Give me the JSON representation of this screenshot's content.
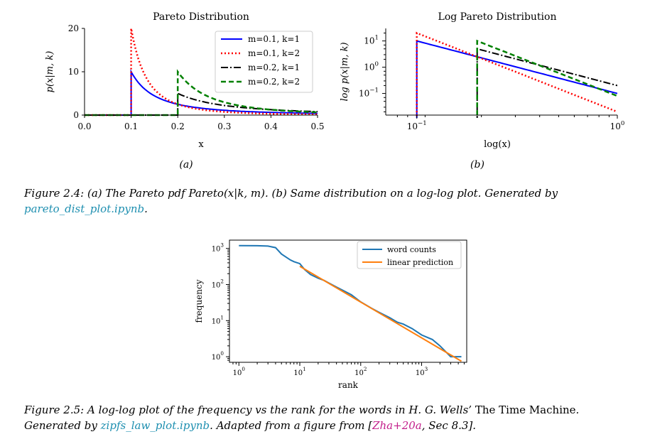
{
  "figure_2_4": {
    "caption_label": "Figure 2.4:",
    "caption_text": "(a) The Pareto pdf Pareto(x|k, m).  (b) Same distribution on a log-log plot.  Generated by",
    "caption_link": "pareto_dist_plot.ipynb",
    "caption_end": "."
  },
  "figure_2_5": {
    "caption_label": "Figure 2.5:",
    "caption_text": "A log-log plot of the frequency vs the rank for the words in H. G. Wells’",
    "caption_title": "The Time Machine",
    "caption_text2": ". Generated by",
    "caption_link": "zipfs_law_plot.ipynb",
    "caption_text3": ". Adapted from a figure from [",
    "caption_cite": "Zha+20a",
    "caption_text4": ", Sec 8.3]."
  },
  "colors": {
    "blue": "#0000ff",
    "red": "#ff0000",
    "black": "#000000",
    "green": "#008000",
    "mpl_blue": "#1f77b4",
    "mpl_orange": "#ff7f0e"
  },
  "chart_data": [
    {
      "type": "line",
      "title": "Pareto Distribution",
      "xlabel": "x",
      "ylabel": "p(x|m, k)",
      "sublabel": "(a)",
      "xlim": [
        0.0,
        0.5
      ],
      "ylim": [
        0,
        20
      ],
      "xticks": [
        0.0,
        0.1,
        0.2,
        0.3,
        0.4,
        0.5
      ],
      "xtick_labels": [
        "0.0",
        "0.1",
        "0.2",
        "0.3",
        "0.4",
        "0.5"
      ],
      "yticks": [
        0,
        10,
        20
      ],
      "ytick_labels": [
        "0",
        "10",
        "20"
      ],
      "legend_position": "top-right",
      "series": [
        {
          "name": "m=0.1, k=1",
          "m": 0.1,
          "k": 1,
          "style": "solid",
          "color": "#0000ff"
        },
        {
          "name": "m=0.1, k=2",
          "m": 0.1,
          "k": 2,
          "style": "dotted",
          "color": "#ff0000"
        },
        {
          "name": "m=0.2, k=1",
          "m": 0.2,
          "k": 1,
          "style": "dashdot",
          "color": "#000000"
        },
        {
          "name": "m=0.2, k=2",
          "m": 0.2,
          "k": 2,
          "style": "dashed",
          "color": "#008000"
        }
      ]
    },
    {
      "type": "line",
      "title": "Log Pareto Distribution",
      "xlabel": "log(x)",
      "ylabel": "log p(x|m, k)",
      "sublabel": "(b)",
      "xscale": "log",
      "yscale": "log",
      "xlim": [
        0.07,
        1.0
      ],
      "ylim": [
        0.015,
        30
      ],
      "xtick_labels": [
        "10",
        "10"
      ],
      "xtick_exponents": [
        "−1",
        "0"
      ],
      "ytick_labels": [
        "10",
        "10",
        "10"
      ],
      "ytick_exponents": [
        "1",
        "0",
        "−1"
      ],
      "series": [
        {
          "name": "m=0.1, k=1",
          "m": 0.1,
          "k": 1,
          "style": "solid",
          "color": "#0000ff"
        },
        {
          "name": "m=0.1, k=2",
          "m": 0.1,
          "k": 2,
          "style": "dotted",
          "color": "#ff0000"
        },
        {
          "name": "m=0.2, k=1",
          "m": 0.2,
          "k": 1,
          "style": "dashdot",
          "color": "#000000"
        },
        {
          "name": "m=0.2, k=2",
          "m": 0.2,
          "k": 2,
          "style": "dashed",
          "color": "#008000"
        }
      ]
    },
    {
      "type": "line",
      "xlabel": "rank",
      "ylabel": "frequency",
      "xscale": "log",
      "yscale": "log",
      "xlim": [
        0.7,
        5500
      ],
      "ylim": [
        0.7,
        1700
      ],
      "xtick_labels": [
        "10",
        "10",
        "10",
        "10"
      ],
      "xtick_exponents": [
        "0",
        "1",
        "2",
        "3"
      ],
      "ytick_labels": [
        "10",
        "10",
        "10",
        "10"
      ],
      "ytick_exponents": [
        "0",
        "1",
        "2",
        "3"
      ],
      "legend_position": "top-right",
      "series": [
        {
          "name": "word counts",
          "color": "#1f77b4",
          "x": [
            1,
            2,
            3,
            4,
            5,
            7,
            8,
            10,
            12,
            15,
            20,
            25,
            30,
            40,
            50,
            70,
            100,
            150,
            200,
            300,
            400,
            500,
            700,
            1000,
            1500,
            2000,
            3000,
            4500
          ],
          "y": [
            1200,
            1190,
            1160,
            1050,
            700,
            480,
            430,
            380,
            260,
            190,
            150,
            130,
            110,
            85,
            70,
            52,
            33,
            22,
            17,
            12,
            9,
            8,
            6,
            4,
            3,
            2,
            1,
            1
          ]
        },
        {
          "name": "linear prediction",
          "color": "#ff7f0e",
          "x": [
            10,
            4500
          ],
          "y": [
            320,
            0.75
          ]
        }
      ]
    }
  ]
}
